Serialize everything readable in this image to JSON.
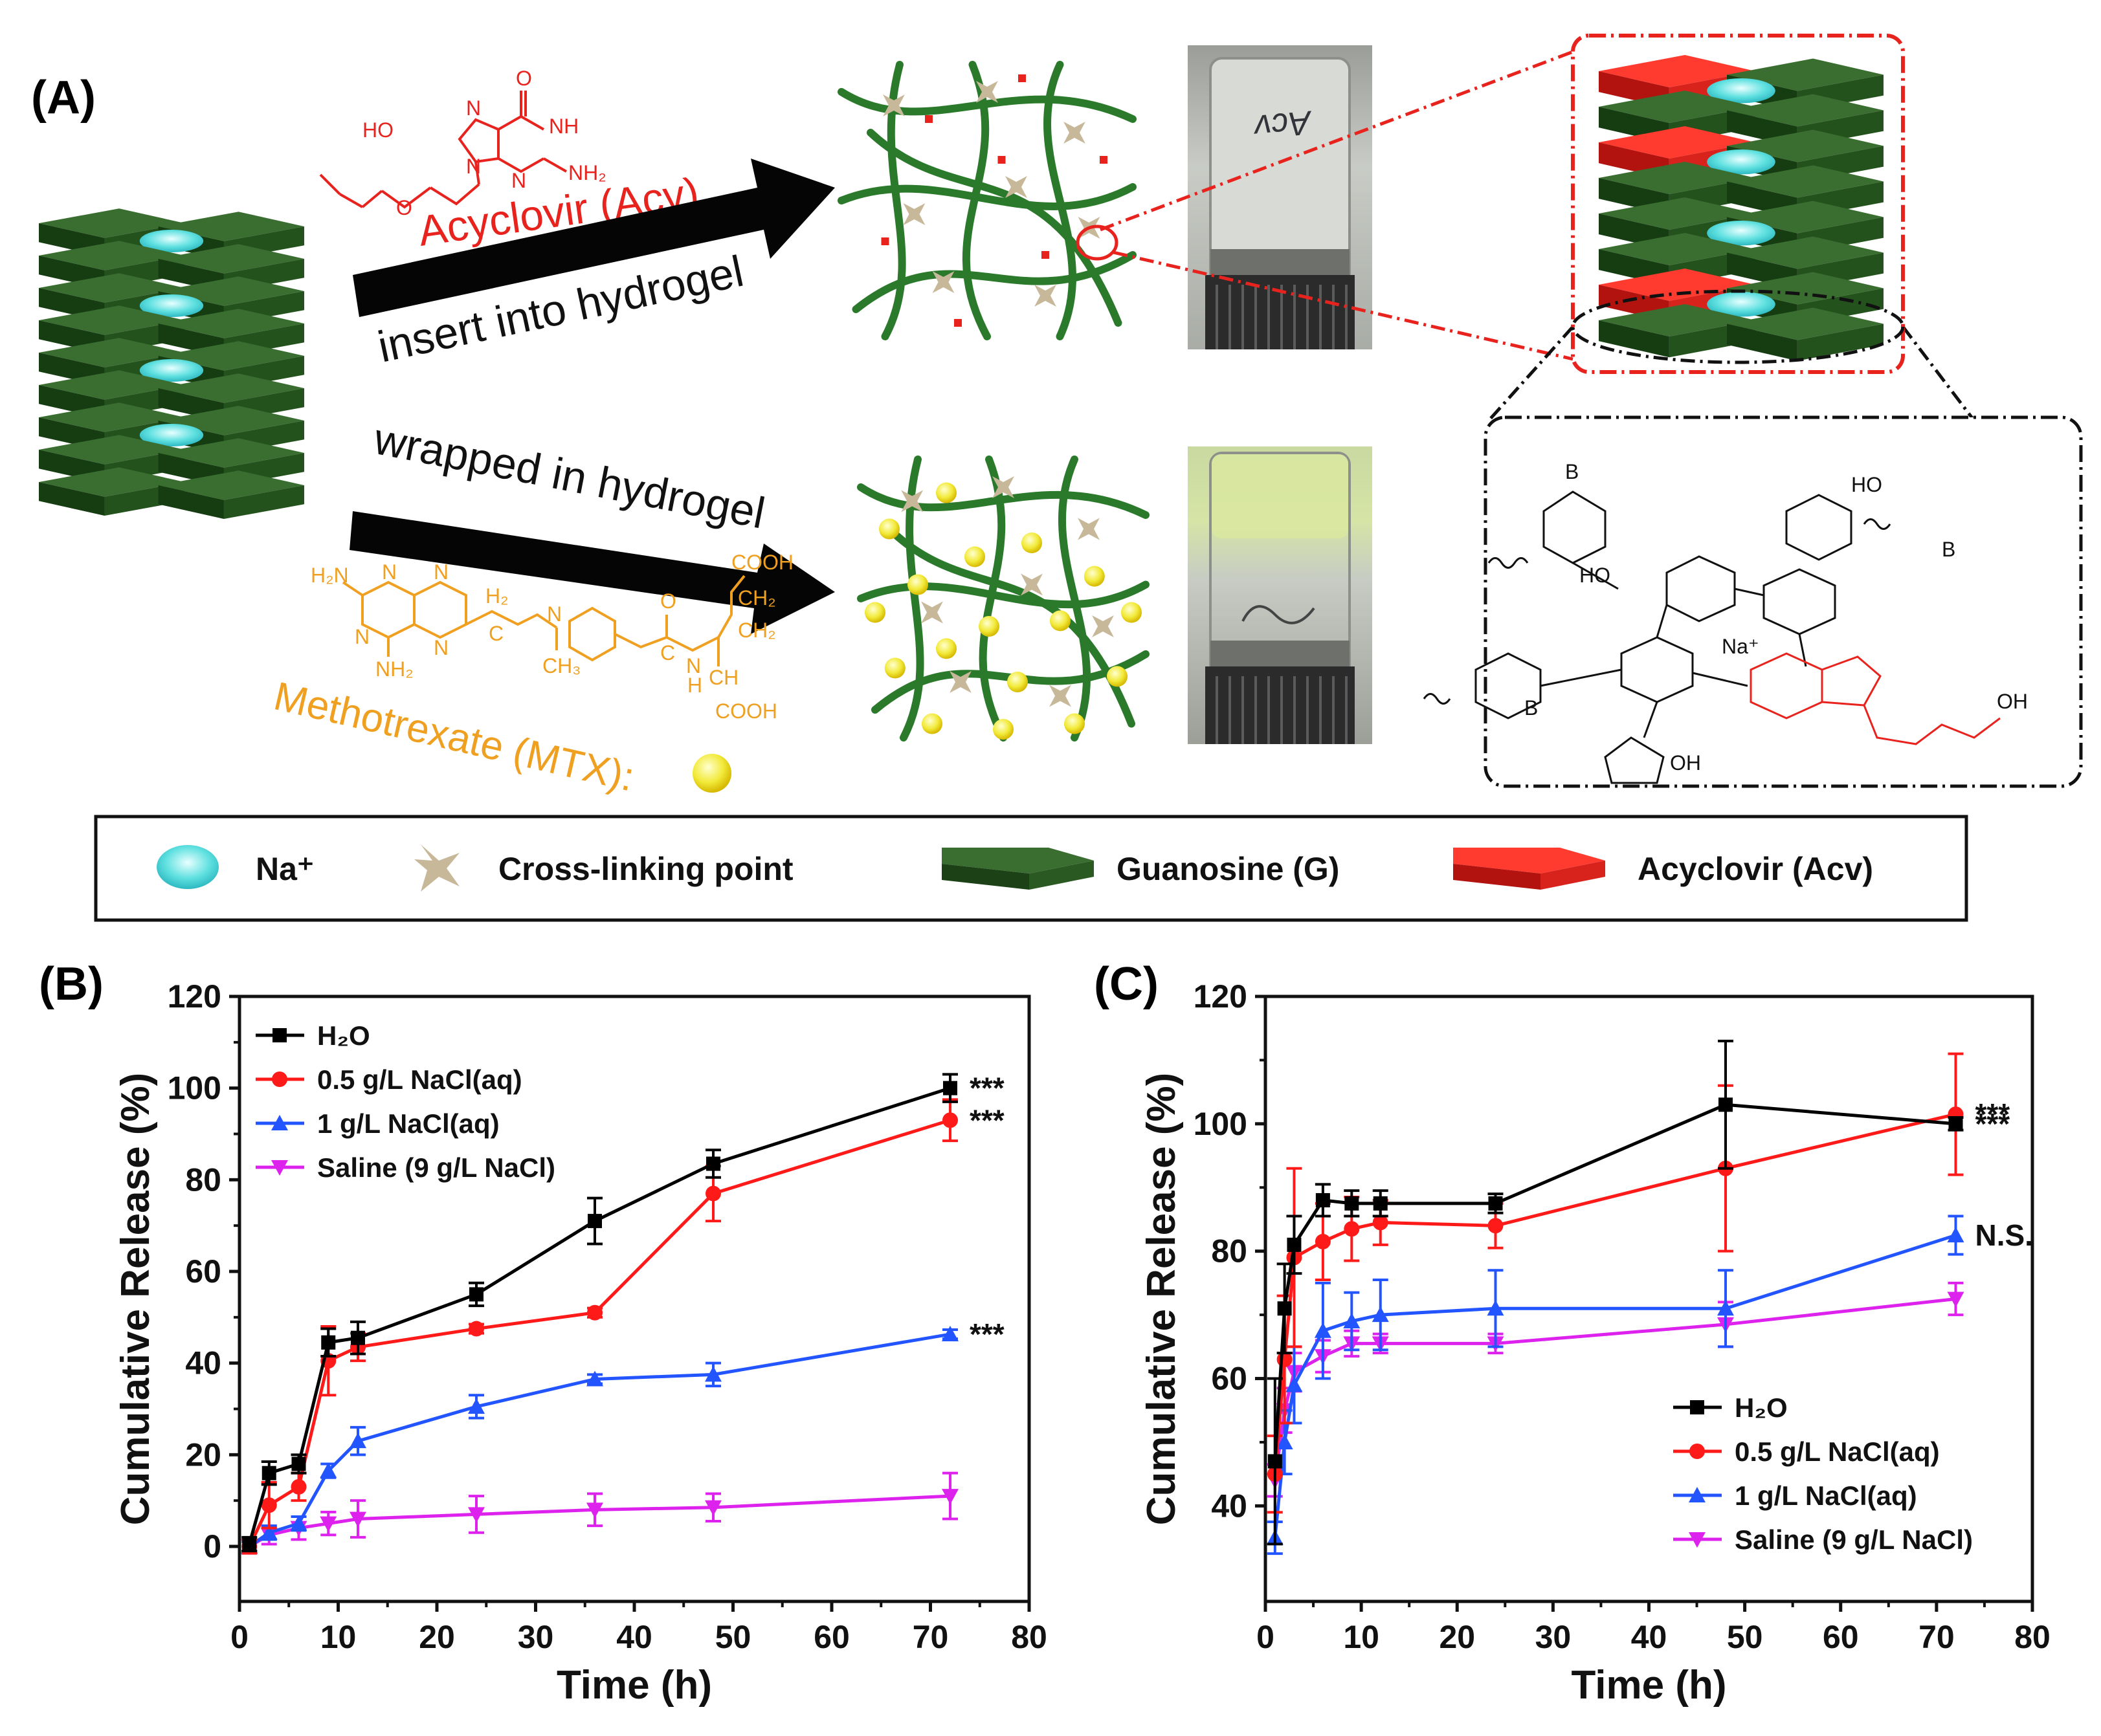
{
  "scheme": {
    "panel_label": "(A)",
    "acv_name": "Acyclovir (Acv)",
    "mtx_name": "Methotrexate (MTX):",
    "arrow_top_text": "insert into hydrogel",
    "arrow_bottom_text": "wrapped in hydrogel",
    "vial_top_label": "Acv",
    "acv_labels": {
      "ho": "HO",
      "o": "O",
      "nh": "NH",
      "nh2": "NH₂",
      "n": "N",
      "n2": "N",
      "n3": "N",
      "o_keto": "O"
    },
    "mtx_labels": {
      "h2n": "H₂N",
      "nh2": "NH₂",
      "n1": "N",
      "n2": "N",
      "n3": "N",
      "n4": "N",
      "h2": "H₂",
      "c": "C",
      "n_me": "N",
      "ch3": "CH₃",
      "o_top": "O",
      "c2": "C",
      "n_h": "N",
      "h": "H",
      "ch": "CH",
      "cooh_top": "COOH",
      "ch2a": "CH₂",
      "ch2b": "CH₂",
      "cooh_bot": "COOH"
    },
    "structure_labels": {
      "na": "Na⁺",
      "b1": "B",
      "b2": "B",
      "b3": "B",
      "ho1": "HO",
      "ho2": "HO",
      "oh1": "OH",
      "oh2": "OH"
    },
    "colors": {
      "guanosine": "#245a1f",
      "acyclovir": "#e8231e",
      "sodium": "#5fe0e0",
      "crosslink": "#c8b89a",
      "mtx": "#f0a020",
      "hydrogel": "#2b7a2b"
    }
  },
  "legend": {
    "items": [
      {
        "label": "Na⁺",
        "icon": "sodium-ion-icon"
      },
      {
        "label": "Cross-linking point",
        "icon": "crosslink-star-icon"
      },
      {
        "label": "Guanosine (G)",
        "icon": "guanosine-block-icon"
      },
      {
        "label": "Acyclovir (Acv)",
        "icon": "acyclovir-block-icon"
      }
    ]
  },
  "chart_data": [
    {
      "panel_label": "(B)",
      "type": "line",
      "xlabel": "Time (h)",
      "ylabel": "Cumulative Release (%)",
      "xlim": [
        0,
        80
      ],
      "ylim": [
        -12,
        120
      ],
      "xticks": [
        0,
        10,
        20,
        30,
        40,
        50,
        60,
        70,
        80
      ],
      "yticks": [
        0,
        20,
        40,
        60,
        80,
        100,
        120
      ],
      "legend_position": "top-left",
      "grid": false,
      "x": [
        1,
        3,
        6,
        9,
        12,
        24,
        36,
        48,
        72
      ],
      "series": [
        {
          "name": "H₂O",
          "color": "#000000",
          "marker": "square",
          "values": [
            0.5,
            16,
            18,
            44.5,
            45.5,
            55,
            71,
            83.5,
            100
          ],
          "errors": [
            1.5,
            2.5,
            2,
            3,
            3.5,
            2.5,
            5,
            3,
            3
          ],
          "significance": "***"
        },
        {
          "name": "0.5 g/L NaCl(aq)",
          "color": "#ff1a1a",
          "marker": "circle",
          "values": [
            0,
            9,
            13,
            40.5,
            43.5,
            47.5,
            51,
            77,
            93
          ],
          "errors": [
            1.5,
            5,
            3,
            7.5,
            3,
            1,
            1,
            6,
            4.5
          ],
          "significance": "***"
        },
        {
          "name": "1 g/L NaCl(aq)",
          "color": "#2255ff",
          "marker": "triangle-up",
          "values": [
            0,
            3,
            5,
            16.5,
            23,
            30.5,
            36.5,
            37.5,
            46.3
          ],
          "errors": [
            1,
            1.5,
            1.5,
            1.5,
            3,
            2.5,
            1,
            2.5,
            1
          ],
          "significance": "***"
        },
        {
          "name": "Saline (9 g/L NaCl)",
          "color": "#dd22ee",
          "marker": "triangle-down",
          "values": [
            0,
            2.5,
            4,
            5,
            6,
            7,
            8,
            8.5,
            11
          ],
          "errors": [
            1.5,
            2,
            2.5,
            2.5,
            4,
            4,
            3.5,
            3,
            5
          ],
          "significance": ""
        }
      ]
    },
    {
      "panel_label": "(C)",
      "type": "line",
      "xlabel": "Time (h)",
      "ylabel": "Cumulative Release (%)",
      "xlim": [
        0,
        80
      ],
      "ylim": [
        25,
        120
      ],
      "xticks": [
        0,
        10,
        20,
        30,
        40,
        50,
        60,
        70,
        80
      ],
      "yticks": [
        40,
        60,
        80,
        100,
        120
      ],
      "legend_position": "bottom-right",
      "grid": false,
      "x": [
        1,
        2,
        3,
        6,
        9,
        12,
        24,
        48,
        72
      ],
      "series": [
        {
          "name": "H₂O",
          "color": "#000000",
          "marker": "square",
          "values": [
            47,
            71,
            81,
            88,
            87.5,
            87.5,
            87.5,
            103,
            100
          ],
          "errors": [
            13,
            7,
            4.5,
            2.5,
            2,
            2,
            1.5,
            10,
            1
          ],
          "significance": "***"
        },
        {
          "name": "0.5 g/L NaCl(aq)",
          "color": "#ff1a1a",
          "marker": "circle",
          "values": [
            45,
            63,
            79,
            81.5,
            83.5,
            84.5,
            84,
            93,
            101.5
          ],
          "errors": [
            6,
            10,
            14,
            6,
            5,
            3.5,
            3.5,
            13,
            9.5
          ],
          "significance": "***"
        },
        {
          "name": "1 g/L NaCl(aq)",
          "color": "#2255ff",
          "marker": "triangle-up",
          "values": [
            35,
            50,
            59,
            67.5,
            69,
            70,
            71,
            71,
            82.5
          ],
          "errors": [
            2.5,
            5,
            6,
            7.5,
            4.5,
            5.5,
            6,
            6,
            3
          ],
          "significance": "N.S."
        },
        {
          "name": "Saline (9 g/L NaCl)",
          "color": "#dd22ee",
          "marker": "triangle-down",
          "values": [
            44,
            55,
            61,
            63.5,
            65.5,
            65.5,
            65.5,
            68.5,
            72.5
          ],
          "errors": [
            2.5,
            3.5,
            3,
            2.5,
            2,
            1.5,
            1.5,
            3.5,
            2.5
          ],
          "significance": ""
        }
      ]
    }
  ]
}
